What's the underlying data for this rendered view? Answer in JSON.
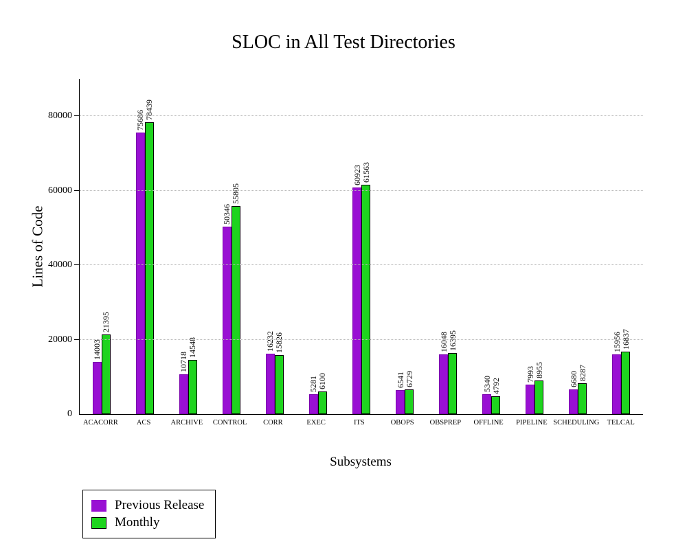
{
  "chart_data": {
    "type": "bar",
    "title": "SLOC in All Test Directories",
    "xlabel": "Subsystems",
    "ylabel": "Lines of Code",
    "ylim": [
      0,
      90000
    ],
    "yticks": [
      0,
      20000,
      40000,
      60000,
      80000
    ],
    "grid": true,
    "legend_position": "bottom-left",
    "categories": [
      "ACACORR",
      "ACS",
      "ARCHIVE",
      "CONTROL",
      "CORR",
      "EXEC",
      "ITS",
      "OBOPS",
      "OBSPREP",
      "OFFLINE",
      "PIPELINE",
      "SCHEDULING",
      "TELCAL"
    ],
    "series": [
      {
        "name": "Previous Release",
        "color": "#9910d3",
        "edge": "#7a00ad",
        "values": [
          14003,
          75686,
          10718,
          50346,
          16232,
          5281,
          60923,
          6541,
          16048,
          5340,
          7993,
          6680,
          15956
        ]
      },
      {
        "name": "Monthly",
        "color": "#1ed41e",
        "edge": "#000000",
        "values": [
          21395,
          78439,
          14548,
          55805,
          15826,
          6100,
          61563,
          6729,
          16395,
          4792,
          8955,
          8287,
          16837
        ]
      }
    ]
  },
  "colors": {
    "axis": "#000000",
    "grid": "#b8b8b8",
    "background": "#ffffff"
  }
}
